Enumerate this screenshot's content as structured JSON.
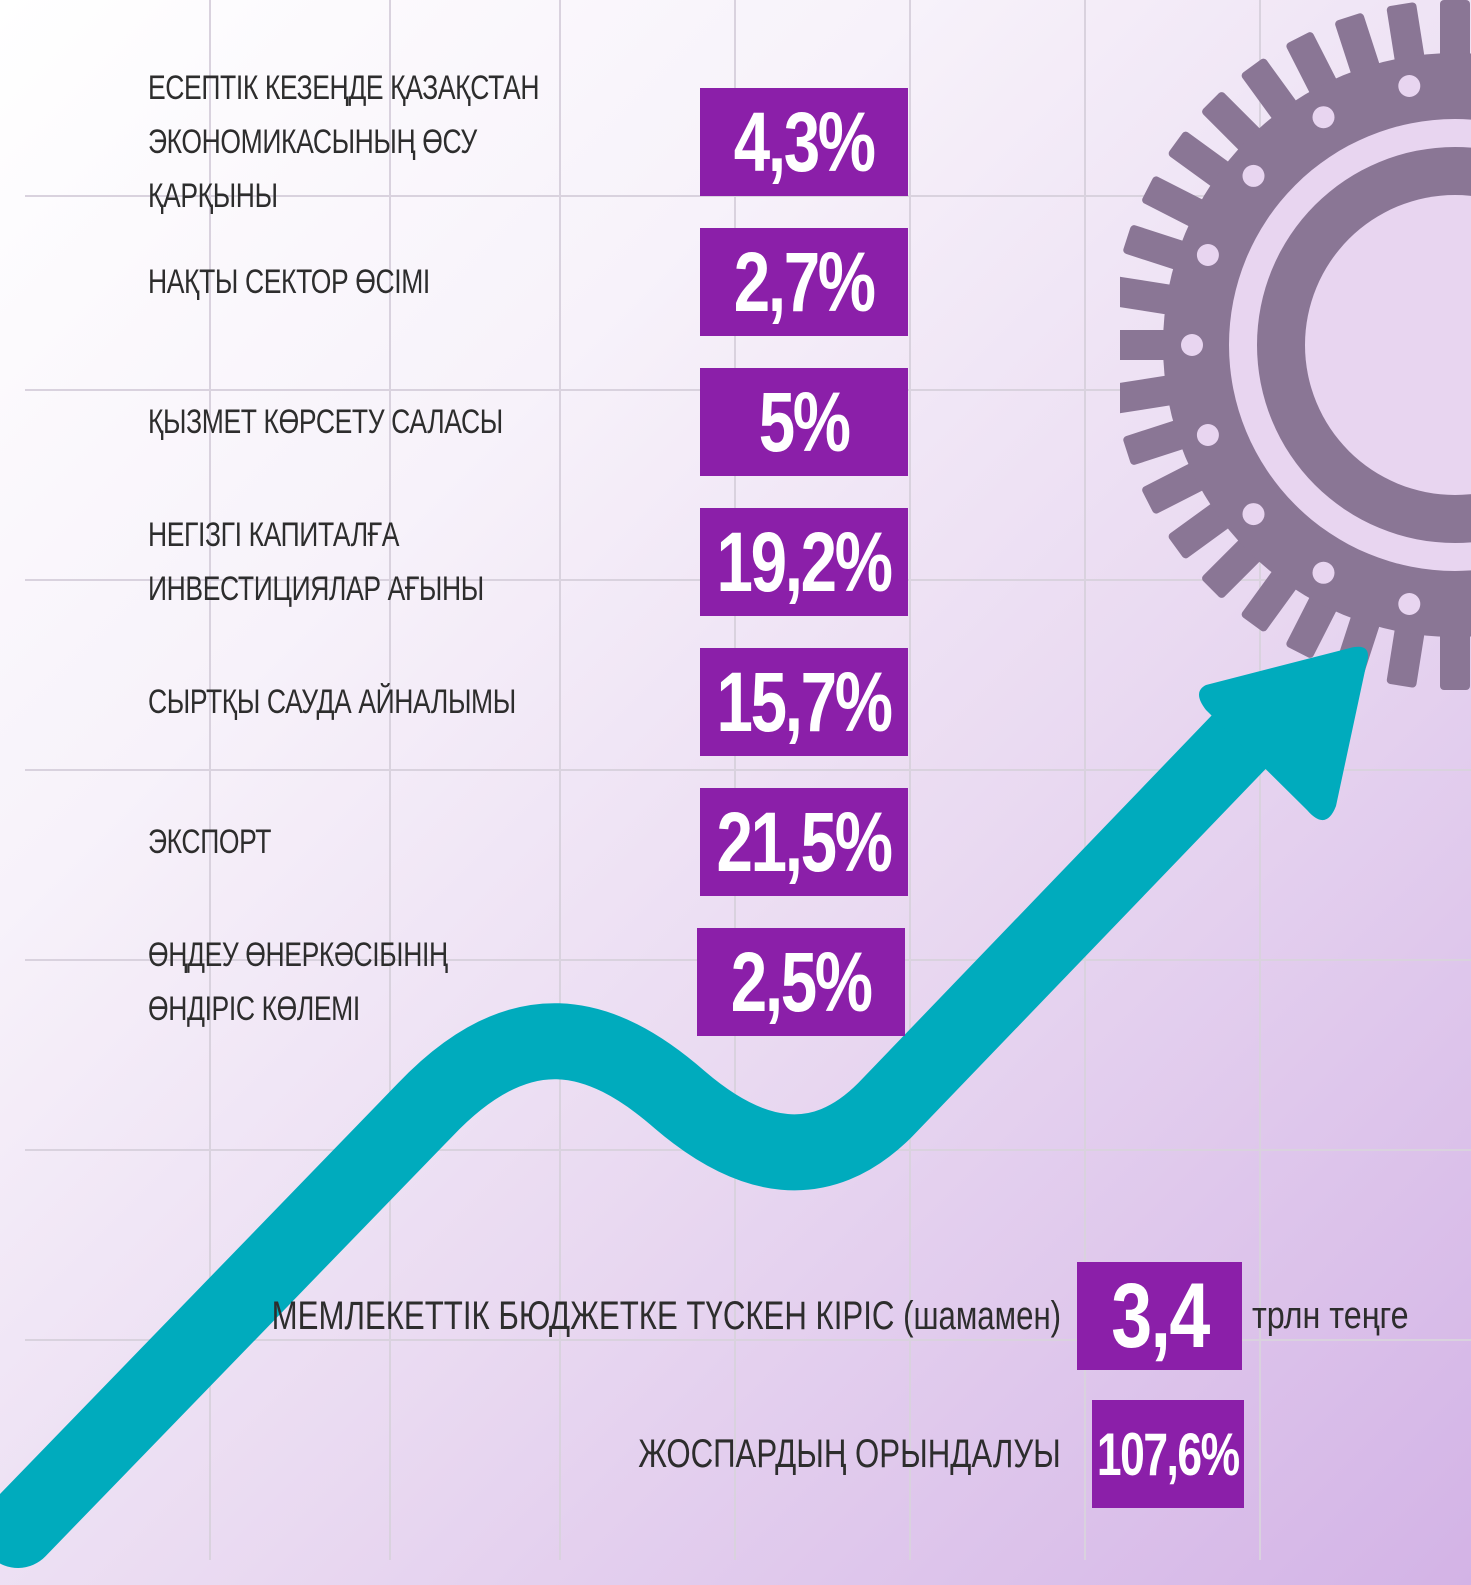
{
  "colors": {
    "value_box": "#8b1fa9",
    "arrow": "#00abbd",
    "gear": "#8a7695",
    "text": "#2d2d2d"
  },
  "icons": [
    "gear-icon",
    "trend-arrow-icon"
  ],
  "stats": [
    {
      "label": "ЕСЕПТІК КЕЗЕҢДЕ ҚАЗАҚСТАН\nЭКОНОМИКАСЫНЫҢ ӨСУ ҚАРҚЫНЫ",
      "value": "4,3%"
    },
    {
      "label": "НАҚТЫ СЕКТОР ӨСІМІ",
      "value": "2,7%"
    },
    {
      "label": "ҚЫЗМЕТ КӨРСЕТУ САЛАСЫ",
      "value": "5%"
    },
    {
      "label": "НЕГІЗГІ КАПИТАЛҒА\nИНВЕСТИЦИЯЛАР АҒЫНЫ",
      "value": "19,2%"
    },
    {
      "label": "СЫРТҚЫ САУДА АЙНАЛЫМЫ",
      "value": "15,7%"
    },
    {
      "label": "ЭКСПОРТ",
      "value": "21,5%"
    },
    {
      "label": "ӨҢДЕУ ӨНЕРКӘСІБІНІҢ\nӨНДІРІС КӨЛЕМІ",
      "value": "2,5%"
    }
  ],
  "budget": {
    "revenue_label": "МЕМЛЕКЕТТІК БЮДЖЕТКЕ ТҮСКЕН КІРІС (шамамен)",
    "revenue_value": "3,4",
    "revenue_unit": "трлн теңге",
    "plan_label": "ЖОСПАРДЫҢ ОРЫНДАЛУЫ",
    "plan_value": "107,6%"
  }
}
